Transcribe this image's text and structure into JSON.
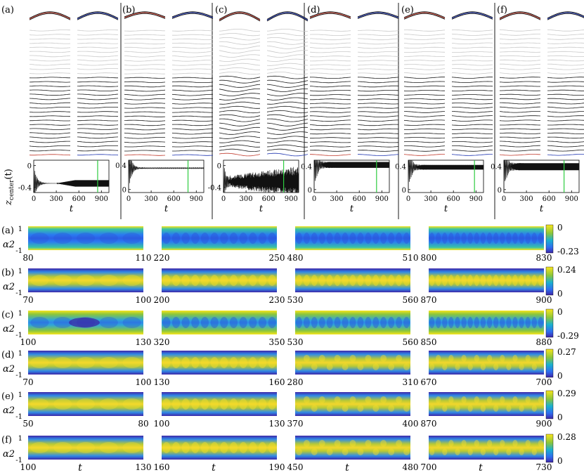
{
  "panel_labels": [
    "(a)",
    "(b)",
    "(c)",
    "(d)",
    "(e)",
    "(f)"
  ],
  "inset_ylabel": "z_center(t)",
  "inset_xlabel": "t",
  "inset_xticks": [
    "0",
    "300",
    "600",
    "900"
  ],
  "chart_data": [
    {
      "panel": "(a)",
      "type": "line",
      "ylim": [
        -0.5,
        0.1
      ],
      "yticks": [
        "0",
        "-0.4"
      ],
      "marker_t": 850,
      "initial_value": 0,
      "settled_value": -0.33,
      "envelope_from_t": 300,
      "envelope_half_width": 0.06,
      "xlabel": "t",
      "ylabel": "z_center(t)"
    },
    {
      "panel": "(b)",
      "type": "line",
      "ylim": [
        -0.05,
        0.48
      ],
      "yticks": [
        "0.4",
        "0"
      ],
      "marker_t": 790,
      "initial_value": 0,
      "settled_value": 0.35,
      "envelope_half_width": 0.005,
      "xlabel": "t"
    },
    {
      "panel": "(c)",
      "type": "line",
      "ylim": [
        -0.5,
        0.1
      ],
      "yticks": [
        "0",
        "-0.4"
      ],
      "marker_t": 800,
      "initial_value": 0,
      "settled_value": -0.3,
      "envelope_half_width": 0.12,
      "noisy": true,
      "xlabel": "t"
    },
    {
      "panel": "(d)",
      "type": "line",
      "ylim": [
        -0.05,
        0.5
      ],
      "yticks": [
        "0.4",
        "0"
      ],
      "marker_t": 830,
      "initial_value": 0,
      "settled_value": 0.42,
      "envelope_half_width": 0.05,
      "xlabel": "t"
    },
    {
      "panel": "(e)",
      "type": "line",
      "ylim": [
        -0.05,
        0.5
      ],
      "yticks": [
        "0.4",
        "0"
      ],
      "marker_t": 880,
      "initial_value": 0,
      "settled_value": 0.38,
      "envelope_half_width": 0.04,
      "xlabel": "t"
    },
    {
      "panel": "(f)",
      "type": "line",
      "ylim": [
        -0.05,
        0.5
      ],
      "yticks": [
        "0.4",
        "0"
      ],
      "marker_t": 800,
      "initial_value": 0,
      "settled_value": 0.39,
      "envelope_half_width": 0.06,
      "xlabel": "t"
    },
    {
      "type": "heatmap",
      "row": "(a)",
      "ylabel": "α2",
      "yticks": [
        "1",
        "-1"
      ],
      "colorbar_range": [
        "0",
        "-0.23"
      ],
      "windows": [
        [
          80,
          110
        ],
        [
          220,
          250
        ],
        [
          480,
          510
        ],
        [
          800,
          830
        ]
      ]
    },
    {
      "type": "heatmap",
      "row": "(b)",
      "ylabel": "α2",
      "yticks": [
        "1",
        "-1"
      ],
      "colorbar_range": [
        "0.24",
        "0"
      ],
      "windows": [
        [
          70,
          100
        ],
        [
          200,
          230
        ],
        [
          530,
          560
        ],
        [
          870,
          900
        ]
      ]
    },
    {
      "type": "heatmap",
      "row": "(c)",
      "ylabel": "α2",
      "yticks": [
        "1",
        "-1"
      ],
      "colorbar_range": [
        "0",
        "-0.29"
      ],
      "windows": [
        [
          100,
          130
        ],
        [
          320,
          350
        ],
        [
          530,
          560
        ],
        [
          850,
          880
        ]
      ]
    },
    {
      "type": "heatmap",
      "row": "(d)",
      "ylabel": "α2",
      "yticks": [
        "1",
        "-1"
      ],
      "colorbar_range": [
        "0.27",
        "0"
      ],
      "windows": [
        [
          70,
          100
        ],
        [
          130,
          160
        ],
        [
          280,
          310
        ],
        [
          670,
          700
        ]
      ]
    },
    {
      "type": "heatmap",
      "row": "(e)",
      "ylabel": "α2",
      "yticks": [
        "1",
        "-1"
      ],
      "colorbar_range": [
        "0.29",
        "0"
      ],
      "windows": [
        [
          50,
          80
        ],
        [
          100,
          130
        ],
        [
          370,
          400
        ],
        [
          870,
          900
        ]
      ]
    },
    {
      "type": "heatmap",
      "row": "(f)",
      "ylabel": "α2",
      "yticks": [
        "1",
        "-1"
      ],
      "colorbar_range": [
        "0.28",
        "0"
      ],
      "windows": [
        [
          100,
          130
        ],
        [
          160,
          190
        ],
        [
          450,
          480
        ],
        [
          700,
          730
        ]
      ],
      "xlabel": "t"
    }
  ],
  "colors": {
    "red": "#c0392b",
    "blue": "#1f35b0",
    "green": "#2ecc40",
    "light": "#c9c9c9",
    "dark": "#1a1a1a"
  }
}
